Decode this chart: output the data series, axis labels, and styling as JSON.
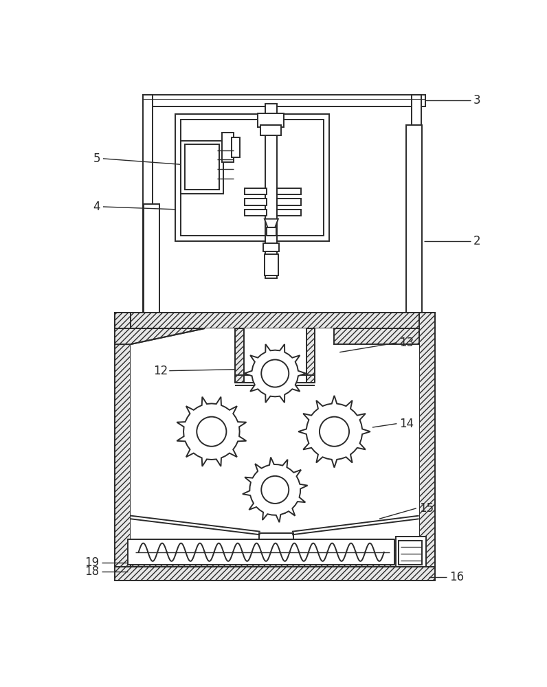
{
  "line_color": "#2a2a2a",
  "bg_color": "#ffffff",
  "lw": 1.4,
  "fig_w": 7.96,
  "fig_h": 10.0,
  "dpi": 100,
  "font_size": 12
}
